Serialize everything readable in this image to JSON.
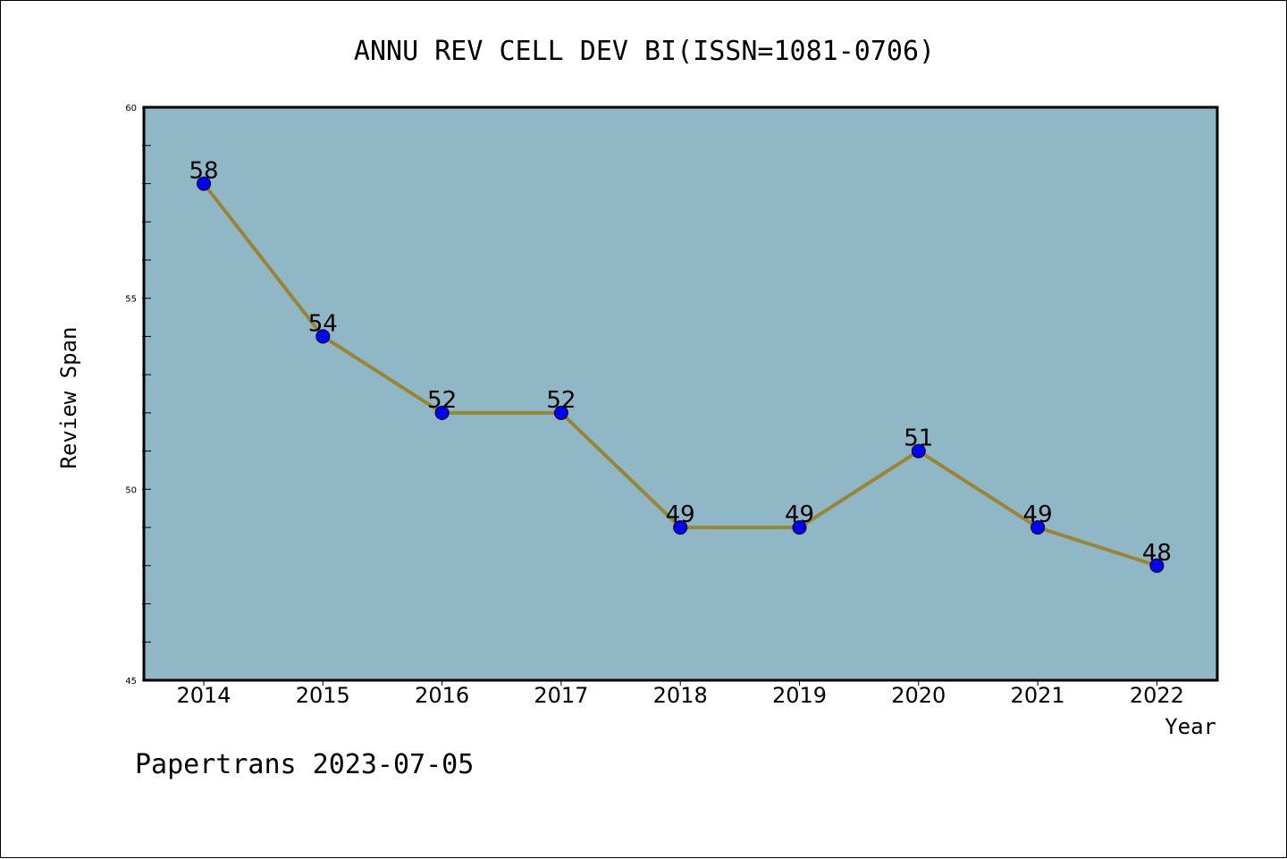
{
  "chart_data": {
    "type": "line",
    "title": "ANNU REV CELL DEV BI(ISSN=1081-0706)",
    "xlabel": "Year",
    "ylabel": "Review Span",
    "categories": [
      "2014",
      "2015",
      "2016",
      "2017",
      "2018",
      "2019",
      "2020",
      "2021",
      "2022"
    ],
    "series": [
      {
        "values": [
          58,
          54,
          52,
          52,
          49,
          49,
          51,
          49,
          48
        ]
      }
    ],
    "ylim": [
      45,
      60
    ],
    "yticks": [
      "45",
      "50",
      "55",
      "60"
    ],
    "grid": false,
    "legend": "none",
    "colors": {
      "plot_background": "#8fb7c5",
      "line": "#9a8535",
      "marker": "#0000ff"
    },
    "footer": "Papertrans 2023-07-05"
  }
}
